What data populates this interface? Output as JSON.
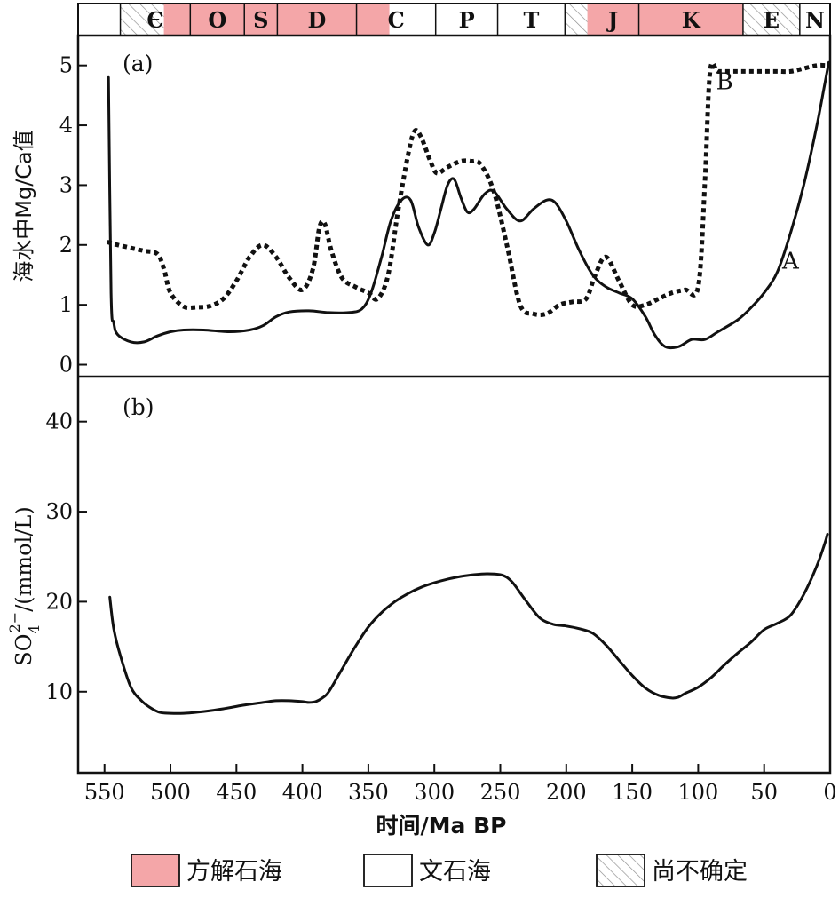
{
  "colors": {
    "calcite": "#f4a6a8",
    "aragonite": "#ffffff",
    "axis": "#111111",
    "curve": "#111111"
  },
  "periods": [
    {
      "label": "",
      "start": 557,
      "end": 538,
      "type": "aragonite"
    },
    {
      "label": "Є",
      "start": 538,
      "end": 505,
      "type": "uncertain"
    },
    {
      "label": "Є",
      "start": 505,
      "end": 485,
      "type": "calcite"
    },
    {
      "label": "O",
      "start": 485,
      "end": 444,
      "type": "calcite"
    },
    {
      "label": "S",
      "start": 444,
      "end": 419,
      "type": "calcite"
    },
    {
      "label": "D",
      "start": 419,
      "end": 359,
      "type": "calcite"
    },
    {
      "label": "C",
      "start": 359,
      "end": 334,
      "type": "calcite"
    },
    {
      "label": "C",
      "start": 334,
      "end": 299,
      "type": "aragonite"
    },
    {
      "label": "P",
      "start": 299,
      "end": 252,
      "type": "aragonite"
    },
    {
      "label": "T",
      "start": 252,
      "end": 201,
      "type": "aragonite"
    },
    {
      "label": "",
      "start": 201,
      "end": 184,
      "type": "uncertain"
    },
    {
      "label": "J",
      "start": 184,
      "end": 145,
      "type": "calcite"
    },
    {
      "label": "K",
      "start": 145,
      "end": 66,
      "type": "calcite"
    },
    {
      "label": "E",
      "start": 66,
      "end": 23,
      "type": "uncertain"
    },
    {
      "label": "N",
      "start": 23,
      "end": 0,
      "type": "aragonite"
    }
  ],
  "legend": [
    {
      "label": "方解石海",
      "type": "calcite"
    },
    {
      "label": "文石海",
      "type": "aragonite"
    },
    {
      "label": "尚不确定",
      "type": "uncertain"
    }
  ],
  "chart_data": [
    {
      "type": "line",
      "panel_label": "(a)",
      "ylabel": "海水中Mg/Ca值",
      "ylim": [
        -0.2,
        5.5
      ],
      "y_ticks": [
        0,
        1,
        2,
        3,
        4,
        5
      ],
      "series": [
        {
          "name": "A",
          "style": "solid",
          "x": [
            547,
            545,
            543,
            540,
            530,
            520,
            510,
            500,
            490,
            475,
            455,
            440,
            430,
            420,
            410,
            395,
            380,
            365,
            355,
            348,
            340,
            333,
            325,
            318,
            312,
            305,
            300,
            295,
            290,
            285,
            280,
            275,
            270,
            262,
            255,
            245,
            235,
            225,
            215,
            208,
            200,
            190,
            180,
            170,
            160,
            150,
            140,
            133,
            125,
            115,
            105,
            95,
            85,
            70,
            60,
            50,
            40,
            30,
            20,
            10,
            4,
            1
          ],
          "y": [
            4.8,
            1.2,
            0.7,
            0.5,
            0.38,
            0.38,
            0.48,
            0.55,
            0.58,
            0.58,
            0.55,
            0.58,
            0.65,
            0.8,
            0.88,
            0.9,
            0.87,
            0.87,
            0.93,
            1.2,
            1.8,
            2.4,
            2.75,
            2.75,
            2.3,
            2.0,
            2.2,
            2.6,
            3.0,
            3.1,
            2.8,
            2.55,
            2.6,
            2.85,
            2.9,
            2.6,
            2.4,
            2.6,
            2.75,
            2.7,
            2.4,
            1.9,
            1.5,
            1.3,
            1.2,
            1.1,
            0.8,
            0.5,
            0.3,
            0.3,
            0.42,
            0.42,
            0.55,
            0.75,
            0.95,
            1.2,
            1.55,
            2.2,
            3.0,
            4.0,
            4.7,
            5.05
          ]
        },
        {
          "name": "B",
          "style": "dotted",
          "x": [
            548,
            540,
            530,
            520,
            510,
            505,
            500,
            490,
            480,
            470,
            460,
            450,
            440,
            430,
            420,
            410,
            400,
            392,
            387,
            383,
            378,
            370,
            360,
            350,
            343,
            335,
            328,
            320,
            315,
            310,
            303,
            298,
            290,
            280,
            272,
            265,
            255,
            245,
            235,
            225,
            215,
            205,
            195,
            185,
            178,
            170,
            160,
            150,
            140,
            130,
            120,
            110,
            100,
            95,
            91,
            85,
            75,
            65,
            50,
            40,
            30,
            20,
            10,
            2
          ],
          "y": [
            2.05,
            2.0,
            1.95,
            1.9,
            1.85,
            1.6,
            1.2,
            0.97,
            0.96,
            0.98,
            1.1,
            1.4,
            1.8,
            2.0,
            1.8,
            1.45,
            1.25,
            1.6,
            2.3,
            2.35,
            1.9,
            1.45,
            1.3,
            1.2,
            1.1,
            1.5,
            2.5,
            3.5,
            3.9,
            3.8,
            3.4,
            3.2,
            3.3,
            3.4,
            3.4,
            3.35,
            2.9,
            2.0,
            1.0,
            0.85,
            0.85,
            1.0,
            1.05,
            1.1,
            1.5,
            1.8,
            1.4,
            1.0,
            1.0,
            1.1,
            1.2,
            1.25,
            1.3,
            3.0,
            4.9,
            4.9,
            4.9,
            4.9,
            4.9,
            4.9,
            4.9,
            4.95,
            5.0,
            5.0
          ]
        }
      ],
      "annotations": [
        {
          "text": "B",
          "x": 80,
          "y": 4.6
        },
        {
          "text": "A",
          "x": 30,
          "y": 1.6
        }
      ]
    },
    {
      "type": "line",
      "panel_label": "(b)",
      "ylabel": "SO",
      "ylabel_sub": "4",
      "ylabel_sup": "2−",
      "ylabel_rest": "/(mmol/L)",
      "ylim": [
        1,
        45
      ],
      "y_ticks": [
        10,
        20,
        30,
        40
      ],
      "xlabel": "时间/Ma BP",
      "xlim": [
        570,
        0
      ],
      "x_ticks": [
        550,
        500,
        450,
        400,
        350,
        300,
        250,
        200,
        150,
        100,
        50,
        0
      ],
      "series": [
        {
          "name": "",
          "style": "solid",
          "x": [
            546,
            543,
            538,
            530,
            522,
            515,
            508,
            500,
            490,
            475,
            460,
            445,
            430,
            420,
            410,
            400,
            395,
            390,
            385,
            380,
            370,
            360,
            350,
            340,
            330,
            320,
            310,
            300,
            290,
            280,
            270,
            260,
            250,
            245,
            240,
            230,
            220,
            210,
            200,
            190,
            180,
            170,
            160,
            150,
            140,
            130,
            120,
            115,
            110,
            100,
            90,
            80,
            70,
            60,
            50,
            40,
            30,
            20,
            10,
            4,
            2
          ],
          "y": [
            20.5,
            17,
            14,
            10.5,
            9,
            8.2,
            7.7,
            7.6,
            7.6,
            7.8,
            8.1,
            8.5,
            8.8,
            9.0,
            9.0,
            8.9,
            8.8,
            8.9,
            9.3,
            10,
            12.5,
            15,
            17.2,
            18.8,
            20,
            20.9,
            21.6,
            22.1,
            22.5,
            22.8,
            23.0,
            23.1,
            23.0,
            22.7,
            22.0,
            20.0,
            18.2,
            17.5,
            17.3,
            17.0,
            16.5,
            15.2,
            13.5,
            11.8,
            10.4,
            9.6,
            9.3,
            9.4,
            9.8,
            10.5,
            11.6,
            13.0,
            14.3,
            15.5,
            16.9,
            17.6,
            18.5,
            20.8,
            24.0,
            26.5,
            27.5
          ]
        }
      ]
    }
  ]
}
